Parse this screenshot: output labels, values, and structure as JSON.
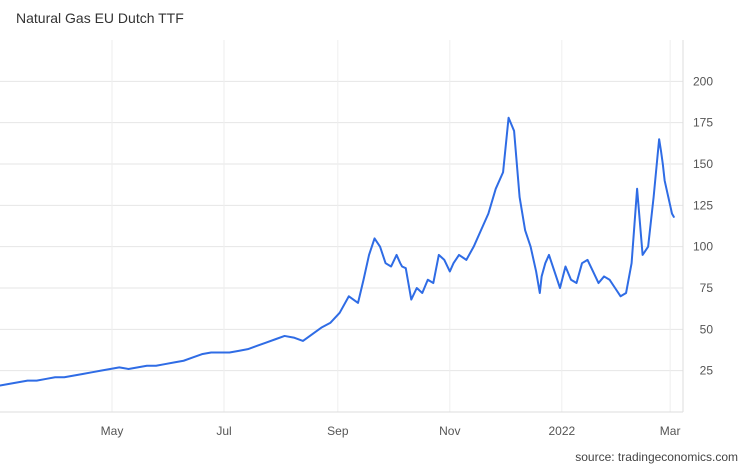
{
  "chart_data": {
    "type": "line",
    "title": "Natural Gas EU Dutch TTF",
    "source": "source: tradingeconomics.com",
    "xlabel": "",
    "ylabel": "",
    "ylim": [
      0,
      225
    ],
    "yticks": [
      25,
      50,
      75,
      100,
      125,
      150,
      175,
      200
    ],
    "x_tick_labels": [
      {
        "label": "May",
        "date": "2021-05-01"
      },
      {
        "label": "Jul",
        "date": "2021-07-01"
      },
      {
        "label": "Sep",
        "date": "2021-09-01"
      },
      {
        "label": "Nov",
        "date": "2021-11-01"
      },
      {
        "label": "2022",
        "date": "2022-01-01"
      },
      {
        "label": "Mar",
        "date": "2022-03-01"
      }
    ],
    "grid": true,
    "line_color": "#2f6ce5",
    "series": [
      {
        "x": [
          "2021-03-01",
          "2021-03-06",
          "2021-03-11",
          "2021-03-16",
          "2021-03-21",
          "2021-03-26",
          "2021-03-31",
          "2021-04-05",
          "2021-04-10",
          "2021-04-15",
          "2021-04-20",
          "2021-04-25",
          "2021-04-30",
          "2021-05-05",
          "2021-05-10",
          "2021-05-15",
          "2021-05-20",
          "2021-05-25",
          "2021-05-30",
          "2021-06-04",
          "2021-06-09",
          "2021-06-14",
          "2021-06-19",
          "2021-06-24",
          "2021-06-29",
          "2021-07-04",
          "2021-07-09",
          "2021-07-14",
          "2021-07-19",
          "2021-07-24",
          "2021-07-29",
          "2021-08-03",
          "2021-08-08",
          "2021-08-13",
          "2021-08-18",
          "2021-08-23",
          "2021-08-28",
          "2021-09-02",
          "2021-09-07",
          "2021-09-12",
          "2021-09-15",
          "2021-09-18",
          "2021-09-21",
          "2021-09-24",
          "2021-09-27",
          "2021-09-30",
          "2021-10-03",
          "2021-10-05",
          "2021-10-06",
          "2021-10-08",
          "2021-10-11",
          "2021-10-14",
          "2021-10-17",
          "2021-10-20",
          "2021-10-23",
          "2021-10-26",
          "2021-10-29",
          "2021-11-01",
          "2021-11-03",
          "2021-11-06",
          "2021-11-10",
          "2021-11-14",
          "2021-11-18",
          "2021-11-22",
          "2021-11-26",
          "2021-11-30",
          "2021-12-03",
          "2021-12-06",
          "2021-12-09",
          "2021-12-12",
          "2021-12-15",
          "2021-12-18",
          "2021-12-20",
          "2021-12-21",
          "2021-12-23",
          "2021-12-25",
          "2021-12-28",
          "2021-12-31",
          "2022-01-03",
          "2022-01-06",
          "2022-01-09",
          "2022-01-12",
          "2022-01-15",
          "2022-01-18",
          "2022-01-21",
          "2022-01-24",
          "2022-01-27",
          "2022-01-30",
          "2022-02-02",
          "2022-02-05",
          "2022-02-08",
          "2022-02-11",
          "2022-02-14",
          "2022-02-17",
          "2022-02-20",
          "2022-02-23",
          "2022-02-24",
          "2022-02-25",
          "2022-02-26",
          "2022-02-28",
          "2022-03-01",
          "2022-03-02",
          "2022-03-03"
        ],
        "values": [
          16,
          17,
          18,
          19,
          19,
          20,
          21,
          21,
          22,
          23,
          24,
          25,
          26,
          27,
          26,
          27,
          28,
          28,
          29,
          30,
          31,
          33,
          35,
          36,
          36,
          36,
          37,
          38,
          40,
          42,
          44,
          46,
          45,
          43,
          47,
          51,
          54,
          60,
          70,
          66,
          80,
          95,
          105,
          100,
          90,
          88,
          95,
          90,
          88,
          87,
          68,
          75,
          72,
          80,
          78,
          95,
          92,
          85,
          90,
          95,
          92,
          100,
          110,
          120,
          135,
          145,
          178,
          170,
          130,
          110,
          100,
          85,
          72,
          82,
          90,
          95,
          85,
          75,
          88,
          80,
          78,
          90,
          92,
          85,
          78,
          82,
          80,
          75,
          70,
          72,
          90,
          135,
          95,
          100,
          130,
          165,
          158,
          150,
          140,
          130,
          125,
          120,
          118
        ]
      }
    ]
  }
}
